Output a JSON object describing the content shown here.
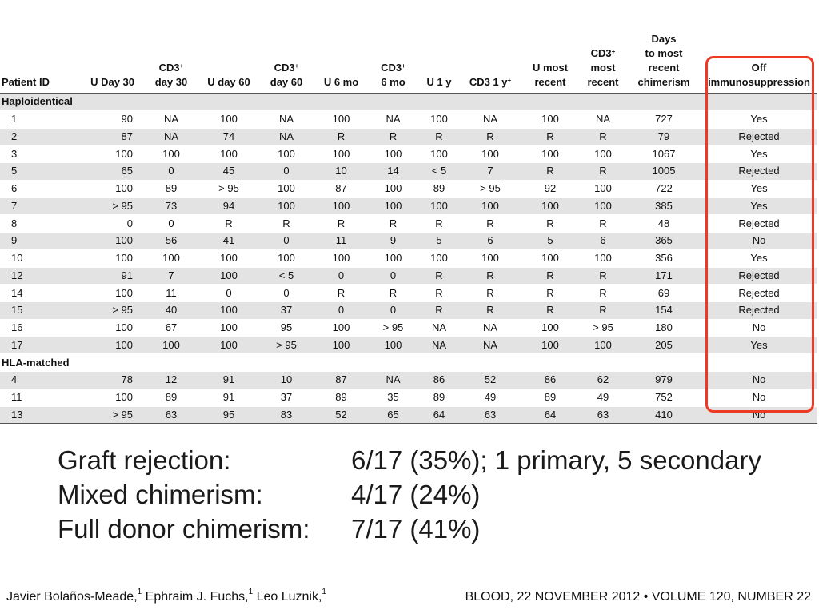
{
  "table": {
    "headers": [
      {
        "lines": [
          "Patient ID"
        ]
      },
      {
        "lines": [
          "U Day 30"
        ]
      },
      {
        "lines": [
          "CD3",
          "day 30"
        ],
        "sup": "+"
      },
      {
        "lines": [
          "U day 60"
        ]
      },
      {
        "lines": [
          "CD3",
          "day 60"
        ],
        "sup": "+"
      },
      {
        "lines": [
          "U 6 mo"
        ]
      },
      {
        "lines": [
          "CD3",
          "6 mo"
        ],
        "sup": "+"
      },
      {
        "lines": [
          "U 1 y"
        ]
      },
      {
        "lines": [
          "CD3 1 y"
        ],
        "sup": "+"
      },
      {
        "lines": [
          "U most",
          "recent"
        ]
      },
      {
        "lines": [
          "CD3",
          "most",
          "recent"
        ],
        "sup": "+"
      },
      {
        "lines": [
          "Days",
          "to most",
          "recent",
          "chimerism"
        ]
      },
      {
        "lines": [
          "Off",
          "immunosuppression"
        ]
      }
    ],
    "groups": [
      {
        "label": "Haploidentical",
        "rows": [
          [
            "1",
            "90",
            "NA",
            "100",
            "NA",
            "100",
            "NA",
            "100",
            "NA",
            "100",
            "NA",
            "727",
            "Yes"
          ],
          [
            "2",
            "87",
            "NA",
            "74",
            "NA",
            "R",
            "R",
            "R",
            "R",
            "R",
            "R",
            "79",
            "Rejected"
          ],
          [
            "3",
            "100",
            "100",
            "100",
            "100",
            "100",
            "100",
            "100",
            "100",
            "100",
            "100",
            "1067",
            "Yes"
          ],
          [
            "5",
            "65",
            "0",
            "45",
            "0",
            "10",
            "14",
            "< 5",
            "7",
            "R",
            "R",
            "1005",
            "Rejected"
          ],
          [
            "6",
            "100",
            "89",
            "> 95",
            "100",
            "87",
            "100",
            "89",
            "> 95",
            "92",
            "100",
            "722",
            "Yes"
          ],
          [
            "7",
            "> 95",
            "73",
            "94",
            "100",
            "100",
            "100",
            "100",
            "100",
            "100",
            "100",
            "385",
            "Yes"
          ],
          [
            "8",
            "0",
            "0",
            "R",
            "R",
            "R",
            "R",
            "R",
            "R",
            "R",
            "R",
            "48",
            "Rejected"
          ],
          [
            "9",
            "100",
            "56",
            "41",
            "0",
            "11",
            "9",
            "5",
            "6",
            "5",
            "6",
            "365",
            "No"
          ],
          [
            "10",
            "100",
            "100",
            "100",
            "100",
            "100",
            "100",
            "100",
            "100",
            "100",
            "100",
            "356",
            "Yes"
          ],
          [
            "12",
            "91",
            "7",
            "100",
            "< 5",
            "0",
            "0",
            "R",
            "R",
            "R",
            "R",
            "171",
            "Rejected"
          ],
          [
            "14",
            "100",
            "11",
            "0",
            "0",
            "R",
            "R",
            "R",
            "R",
            "R",
            "R",
            "69",
            "Rejected"
          ],
          [
            "15",
            "> 95",
            "40",
            "100",
            "37",
            "0",
            "0",
            "R",
            "R",
            "R",
            "R",
            "154",
            "Rejected"
          ],
          [
            "16",
            "100",
            "67",
            "100",
            "95",
            "100",
            "> 95",
            "NA",
            "NA",
            "100",
            "> 95",
            "180",
            "No"
          ],
          [
            "17",
            "100",
            "100",
            "100",
            "> 95",
            "100",
            "100",
            "NA",
            "NA",
            "100",
            "100",
            "205",
            "Yes"
          ]
        ]
      },
      {
        "label": "HLA-matched",
        "rows": [
          [
            "4",
            "78",
            "12",
            "91",
            "10",
            "87",
            "NA",
            "86",
            "52",
            "86",
            "62",
            "979",
            "No"
          ],
          [
            "11",
            "100",
            "89",
            "91",
            "37",
            "89",
            "35",
            "89",
            "49",
            "89",
            "49",
            "752",
            "No"
          ],
          [
            "13",
            "> 95",
            "63",
            "95",
            "83",
            "52",
            "65",
            "64",
            "63",
            "64",
            "63",
            "410",
            "No"
          ]
        ]
      }
    ]
  },
  "summary": [
    {
      "label": "Graft rejection:",
      "value": "6/17 (35%); 1 primary, 5 secondary"
    },
    {
      "label": "Mixed chimerism:",
      "value": "4/17 (24%)"
    },
    {
      "label": "Full donor chimerism:",
      "value": "7/17 (41%)"
    }
  ],
  "footer": {
    "authors": [
      {
        "name": "Javier Bolaños-Meade,",
        "sup": "1"
      },
      {
        "name": " Ephraim J. Fuchs,",
        "sup": "1"
      },
      {
        "name": " Leo Luznik,",
        "sup": "1"
      }
    ],
    "journal": "BLOOD, 22 NOVEMBER 2012 • VOLUME 120, NUMBER 22"
  },
  "colors": {
    "highlight": "#ee3a24",
    "row_shade": "#e3e3e3"
  }
}
